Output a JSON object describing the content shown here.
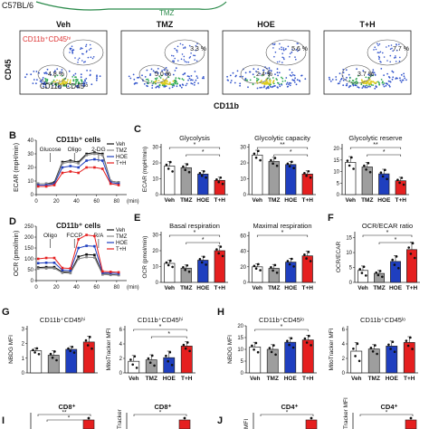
{
  "top": {
    "strain": "C57BL/6",
    "drug": "TMZ"
  },
  "panelA": {
    "groups": [
      "Veh",
      "TMZ",
      "HOE",
      "T+H"
    ],
    "ylabel": "CD45",
    "xlabel": "CD11b",
    "gate_hi": "CD11b⁺CD45ʰⁱ",
    "gate_lo": "CD11b⁺CD45ˡᵒ",
    "hi_pct": [
      "",
      "3.3 %",
      "5.6 %",
      "7.7 %"
    ],
    "lo_pct": [
      "4.8 %",
      "5.0 %",
      "2.4 %",
      "3.7 %"
    ],
    "colors": {
      "hi_gate": "#d33",
      "density_low": "#3355cc",
      "density_mid": "#33aa55",
      "density_high": "#ddcc22"
    }
  },
  "panelB": {
    "letter": "B",
    "title": "CD11b⁺ cells",
    "ylabel": "ECAR (mpH/min)",
    "xlabel": "(min)",
    "injections": [
      "Glucose",
      "Oligo",
      "2-DG"
    ],
    "xticks": [
      "0",
      "20",
      "40",
      "60",
      "80"
    ],
    "yticks": [
      "0",
      "10",
      "20",
      "30",
      "40"
    ],
    "legend": [
      "Veh",
      "TMZ",
      "HOE",
      "T+H"
    ]
  },
  "panelC": {
    "letter": "C",
    "ylabel": "ECAR (mpH/min)",
    "subplots": [
      {
        "title": "Glycolysis",
        "sig": [
          "*",
          "*"
        ],
        "yticks": [
          "0",
          "10",
          "20",
          "30"
        ]
      },
      {
        "title": "Glycolytic capacity",
        "sig": [
          "**",
          "*"
        ],
        "yticks": [
          "0",
          "10",
          "20",
          "30"
        ]
      },
      {
        "title": "Glycolytic reserve",
        "sig": [
          "**",
          "*"
        ],
        "yticks": [
          "0",
          "5",
          "10",
          "15",
          "20"
        ]
      }
    ]
  },
  "panelD": {
    "letter": "D",
    "title": "CD11b⁺ cells",
    "ylabel": "OCR (pmol/min)",
    "xlabel": "(min)",
    "injections": [
      "Oligo",
      "FCCP",
      "R/A"
    ],
    "xticks": [
      "0",
      "20",
      "40",
      "60",
      "80"
    ],
    "yticks": [
      "0",
      "50",
      "100",
      "150",
      "200",
      "250"
    ],
    "legend": [
      "Veh",
      "TMZ",
      "HOE",
      "T+H"
    ]
  },
  "panelE": {
    "letter": "E",
    "ylabel": "OCR (pmol/min)",
    "subplots": [
      {
        "title": "Basal respiration",
        "sig": [
          "*",
          "*"
        ],
        "yticks": [
          "0",
          "10",
          "20",
          "30"
        ]
      },
      {
        "title": "Maximal respiration",
        "sig": [
          "*"
        ],
        "yticks": [
          "0",
          "20",
          "40",
          "60"
        ]
      }
    ]
  },
  "panelF": {
    "letter": "F",
    "title": "OCR/ECAR ratio",
    "ylabel": "OCR/ECAR",
    "sig": [
      "*",
      "*"
    ],
    "yticks": [
      "0",
      "5",
      "10",
      "15"
    ]
  },
  "panelG": {
    "letter": "G",
    "subplots": [
      {
        "title": "CD11b⁺CD45ʰⁱ",
        "ylabel": "NBDG MFI",
        "sig": [],
        "yticks": [
          "0",
          "1",
          "2",
          "3"
        ]
      },
      {
        "title": "CD11b⁺CD45ʰⁱ",
        "ylabel": "MitoTracker MFI",
        "sig": [
          "*",
          "*"
        ],
        "yticks": [
          "0",
          "2",
          "4",
          "6"
        ]
      }
    ]
  },
  "panelH": {
    "letter": "H",
    "subplots": [
      {
        "title": "CD11b⁺CD45ˡᵒ",
        "ylabel": "NBDG MFI",
        "sig": [
          "*"
        ],
        "yticks": [
          "0",
          "5",
          "10",
          "15",
          "20"
        ]
      },
      {
        "title": "CD11b⁺CD45ˡᵒ",
        "ylabel": "MitoTracker MFI",
        "sig": [],
        "yticks": [
          "0",
          "2",
          "4",
          "6"
        ]
      }
    ]
  },
  "panelI": {
    "letter": "I",
    "subplots": [
      {
        "title": "CD8⁺",
        "sig": [
          "**",
          "*"
        ]
      },
      {
        "title": "CD8⁺",
        "ylabel": "Tracker",
        "sig": [
          "*"
        ]
      }
    ]
  },
  "panelJ": {
    "letter": "J",
    "subplots": [
      {
        "title": "CD4⁺",
        "ylabel": "MFI",
        "sig": [
          "*"
        ]
      },
      {
        "title": "CD4⁺",
        "ylabel": "Tracker MFI",
        "sig": [
          "*"
        ]
      }
    ]
  },
  "group_colors": [
    "#ffffff",
    "#9e9e9e",
    "#1f3fbf",
    "#e51f1f"
  ],
  "line_colors": [
    "#111111",
    "#888888",
    "#1f3fbf",
    "#e51f1f"
  ],
  "bar_categories": [
    "Veh",
    "TMZ",
    "HOE",
    "T+H"
  ],
  "chart_data": [
    {
      "type": "scatter",
      "panel": "A",
      "note_labels": [
        "Veh",
        "TMZ",
        "HOE",
        "T+H"
      ],
      "xlabel": "CD11b",
      "ylabel": "CD45"
    },
    {
      "type": "line",
      "panel": "B",
      "title": "CD11b⁺ cells",
      "ylabel": "ECAR (mpH/min)",
      "x": [
        2,
        10,
        18,
        26,
        34,
        42,
        50,
        58,
        66,
        74,
        82
      ],
      "ylim": [
        0,
        40
      ],
      "xlim": [
        0,
        90
      ],
      "series": [
        {
          "name": "Veh",
          "values": [
            8,
            8,
            9,
            24,
            25,
            24,
            30,
            31,
            30,
            10,
            9
          ]
        },
        {
          "name": "TMZ",
          "values": [
            8,
            8,
            8,
            23,
            24,
            23,
            29,
            30,
            29,
            10,
            9
          ]
        },
        {
          "name": "HOE",
          "values": [
            7,
            7,
            8,
            20,
            21,
            20,
            25,
            26,
            25,
            9,
            8
          ]
        },
        {
          "name": "T+H",
          "values": [
            6,
            6,
            7,
            16,
            17,
            16,
            20,
            20,
            19,
            8,
            7
          ]
        }
      ]
    },
    {
      "type": "bar",
      "panel": "C",
      "title": "Glycolysis",
      "categories": [
        "Veh",
        "TMZ",
        "HOE",
        "T+H"
      ],
      "values": [
        18,
        17,
        13,
        9
      ],
      "errors": [
        3,
        2.5,
        2,
        2
      ],
      "ylim": [
        0,
        32
      ]
    },
    {
      "type": "bar",
      "panel": "C",
      "title": "Glycolytic capacity",
      "categories": [
        "Veh",
        "TMZ",
        "HOE",
        "T+H"
      ],
      "values": [
        25,
        21,
        19,
        13
      ],
      "errors": [
        3,
        2.5,
        2,
        2
      ],
      "ylim": [
        0,
        32
      ]
    },
    {
      "type": "bar",
      "panel": "C",
      "title": "Glycolytic reserve",
      "categories": [
        "Veh",
        "TMZ",
        "HOE",
        "T+H"
      ],
      "values": [
        14,
        12,
        9,
        6
      ],
      "errors": [
        2.5,
        2,
        2,
        1.5
      ],
      "ylim": [
        0,
        22
      ]
    },
    {
      "type": "line",
      "panel": "D",
      "title": "CD11b⁺ cells",
      "ylabel": "OCR (pmol/min)",
      "x": [
        2,
        10,
        18,
        26,
        34,
        42,
        50,
        58,
        66,
        74,
        82
      ],
      "ylim": [
        0,
        250
      ],
      "xlim": [
        0,
        90
      ],
      "series": [
        {
          "name": "Veh",
          "values": [
            60,
            62,
            62,
            40,
            38,
            110,
            120,
            118,
            30,
            28,
            26
          ]
        },
        {
          "name": "TMZ",
          "values": [
            55,
            56,
            56,
            36,
            34,
            100,
            108,
            106,
            28,
            26,
            25
          ]
        },
        {
          "name": "HOE",
          "values": [
            80,
            82,
            82,
            48,
            46,
            150,
            160,
            158,
            36,
            34,
            32
          ]
        },
        {
          "name": "T+H",
          "values": [
            100,
            104,
            104,
            58,
            56,
            190,
            210,
            205,
            42,
            40,
            38
          ]
        }
      ]
    },
    {
      "type": "bar",
      "panel": "E",
      "title": "Basal respiration",
      "categories": [
        "Veh",
        "TMZ",
        "HOE",
        "T+H"
      ],
      "values": [
        12,
        9,
        14,
        20
      ],
      "errors": [
        2,
        2,
        2.5,
        3
      ],
      "ylim": [
        0,
        32
      ]
    },
    {
      "type": "bar",
      "panel": "E",
      "title": "Maximal respiration",
      "categories": [
        "Veh",
        "TMZ",
        "HOE",
        "T+H"
      ],
      "values": [
        20,
        18,
        26,
        34
      ],
      "errors": [
        4,
        5,
        5,
        6
      ],
      "ylim": [
        0,
        65
      ]
    },
    {
      "type": "bar",
      "panel": "F",
      "title": "OCR/ECAR ratio",
      "categories": [
        "Veh",
        "TMZ",
        "HOE",
        "T+H"
      ],
      "values": [
        4,
        3,
        7,
        11
      ],
      "errors": [
        1.5,
        1,
        2,
        2.5
      ],
      "ylim": [
        0,
        17
      ]
    },
    {
      "type": "bar",
      "panel": "G",
      "title": "CD11b⁺CD45ʰⁱ",
      "ylabel": "NBDG MFI",
      "categories": [
        "Veh",
        "TMZ",
        "HOE",
        "T+H"
      ],
      "values": [
        1.5,
        1.2,
        1.6,
        2.1
      ],
      "errors": [
        0.2,
        0.3,
        0.2,
        0.4
      ],
      "ylim": [
        0,
        3.2
      ]
    },
    {
      "type": "bar",
      "panel": "G",
      "title": "CD11b⁺CD45ʰⁱ",
      "ylabel": "MitoTracker MFI",
      "categories": [
        "Veh",
        "TMZ",
        "HOE",
        "T+H"
      ],
      "values": [
        1.6,
        1.8,
        2.1,
        3.7
      ],
      "errors": [
        0.8,
        0.7,
        0.9,
        0.6
      ],
      "ylim": [
        0,
        6.5
      ]
    },
    {
      "type": "bar",
      "panel": "H",
      "title": "CD11b⁺CD45ˡᵒ",
      "ylabel": "NBDG MFI",
      "categories": [
        "Veh",
        "TMZ",
        "HOE",
        "T+H"
      ],
      "values": [
        11,
        10,
        13,
        14
      ],
      "errors": [
        2,
        2,
        2,
        2
      ],
      "ylim": [
        0,
        20
      ]
    },
    {
      "type": "bar",
      "panel": "H",
      "title": "CD11b⁺CD45ˡᵒ",
      "ylabel": "MitoTracker MFI",
      "categories": [
        "Veh",
        "TMZ",
        "HOE",
        "T+H"
      ],
      "values": [
        3.0,
        3.3,
        3.7,
        4.2
      ],
      "errors": [
        1.2,
        0.6,
        0.7,
        0.8
      ],
      "ylim": [
        0,
        6.5
      ]
    }
  ]
}
